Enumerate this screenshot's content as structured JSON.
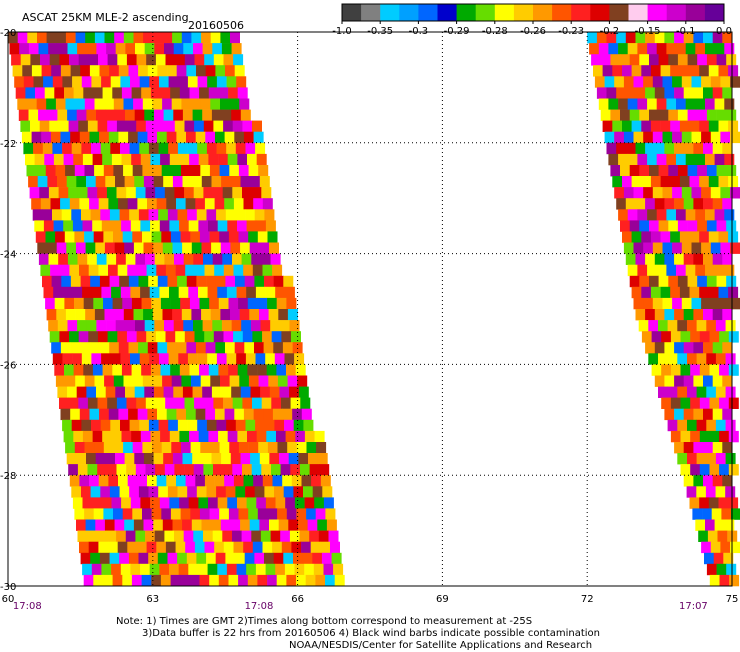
{
  "header": {
    "title": "ASCAT 25KM MLE-2 ascending",
    "date": "20160506"
  },
  "colorbar": {
    "colors": [
      "#404040",
      "#808080",
      "#00ccff",
      "#00a0ff",
      "#0066ff",
      "#0000cc",
      "#00aa00",
      "#66dd00",
      "#ffff00",
      "#ffcc00",
      "#ff9900",
      "#ff5500",
      "#ff2020",
      "#dd0000",
      "#804020",
      "#ffccee",
      "#ff00ff",
      "#cc00cc",
      "#990099",
      "#660099"
    ],
    "labels": [
      "-1.0",
      "-0.35",
      "-0.3",
      "-0.29",
      "-0.28",
      "-0.26",
      "-0.23",
      "-0.2",
      "-0.15",
      "-0.1",
      "0.0"
    ]
  },
  "chart_data": {
    "type": "heatmap",
    "x_ticks": [
      "60",
      "63",
      "66",
      "69",
      "72",
      "75"
    ],
    "y_ticks": [
      "-20",
      "-22",
      "-24",
      "-26",
      "-28",
      "-30"
    ],
    "xlim": [
      60,
      75
    ],
    "ylim": [
      -30,
      -20
    ],
    "grid": true,
    "time_labels": [
      {
        "lon": 60.4,
        "text": "17:08"
      },
      {
        "lon": 65.2,
        "text": "17:08"
      },
      {
        "lon": 74.2,
        "text": "17:07"
      }
    ],
    "swaths": [
      {
        "edges": [
          [
            -20,
            60.0,
            64.7
          ],
          [
            -30,
            61.6,
            67.0
          ]
        ]
      },
      {
        "edges": [
          [
            -20,
            72.0,
            75.0
          ],
          [
            -22,
            72.4,
            75.0
          ],
          [
            -25,
            73.0,
            75.0
          ],
          [
            -28,
            74.0,
            75.0
          ],
          [
            -30,
            74.6,
            75.0
          ]
        ]
      }
    ]
  },
  "notes": {
    "line1": "Note: 1) Times are GMT 2)Times along bottom correspond to measurement at -25S",
    "line2": "3)Data buffer is 22 hrs from 20160506 4) Black wind barbs indicate possible contamination",
    "line3": "NOAA/NESDIS/Center for Satellite Applications and Research"
  }
}
